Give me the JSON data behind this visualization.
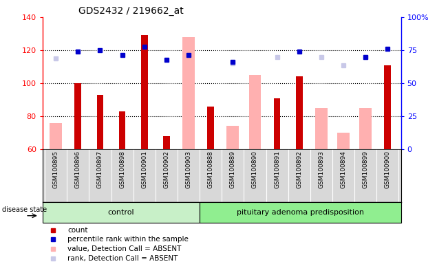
{
  "title": "GDS2432 / 219662_at",
  "samples": [
    "GSM100895",
    "GSM100896",
    "GSM100897",
    "GSM100898",
    "GSM100901",
    "GSM100902",
    "GSM100903",
    "GSM100888",
    "GSM100889",
    "GSM100890",
    "GSM100891",
    "GSM100892",
    "GSM100893",
    "GSM100894",
    "GSM100899",
    "GSM100900"
  ],
  "n_control": 7,
  "n_pituitary": 9,
  "count": [
    null,
    100,
    93,
    83,
    129,
    68,
    null,
    86,
    null,
    null,
    91,
    104,
    null,
    null,
    null,
    111
  ],
  "percentile_rank": [
    null,
    119,
    120,
    117,
    122,
    114,
    117,
    null,
    113,
    null,
    null,
    119,
    null,
    null,
    116,
    121
  ],
  "value_absent": [
    76,
    null,
    null,
    null,
    null,
    null,
    128,
    null,
    74,
    105,
    null,
    null,
    85,
    70,
    85,
    null
  ],
  "rank_absent": [
    115,
    null,
    null,
    null,
    null,
    null,
    null,
    null,
    112,
    null,
    116,
    null,
    116,
    111,
    116,
    null
  ],
  "ylim": [
    60,
    140
  ],
  "yticks_left": [
    60,
    80,
    100,
    120,
    140
  ],
  "yticks_right": [
    0,
    25,
    50,
    75,
    100
  ],
  "count_color": "#cc0000",
  "percentile_color": "#0000cc",
  "value_absent_color": "#ffb0b0",
  "rank_absent_color": "#c8c8e8",
  "control_bg": "#c8f0c8",
  "pituitary_bg": "#90ee90",
  "label_bg": "#d8d8d8",
  "plot_bg": "#ffffff"
}
